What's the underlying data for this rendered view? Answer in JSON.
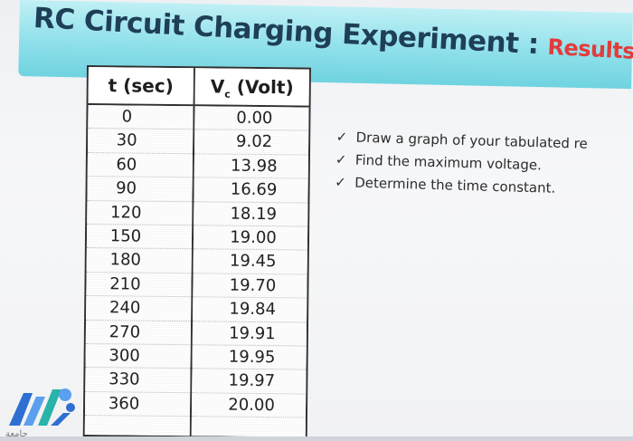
{
  "title": {
    "main": "RC Circuit Charging Experiment :",
    "results": "Results"
  },
  "table": {
    "headers": {
      "t": "t (sec)",
      "v_prefix": "V",
      "v_sub": "c",
      "v_suffix": " (Volt)"
    },
    "rows": [
      {
        "t": "0",
        "v": "0.00"
      },
      {
        "t": "30",
        "v": "9.02"
      },
      {
        "t": "60",
        "v": "13.98"
      },
      {
        "t": "90",
        "v": "16.69"
      },
      {
        "t": "120",
        "v": "18.19"
      },
      {
        "t": "150",
        "v": "19.00"
      },
      {
        "t": "180",
        "v": "19.45"
      },
      {
        "t": "210",
        "v": "19.70"
      },
      {
        "t": "240",
        "v": "19.84"
      },
      {
        "t": "270",
        "v": "19.91"
      },
      {
        "t": "300",
        "v": "19.95"
      },
      {
        "t": "330",
        "v": "19.97"
      },
      {
        "t": "360",
        "v": "20.00"
      }
    ]
  },
  "tasks": [
    {
      "check": "✓",
      "text": "Draw a graph of your tabulated re"
    },
    {
      "check": "✓",
      "text": "Find the maximum voltage."
    },
    {
      "check": "✓",
      "text": "Determine the time constant."
    }
  ],
  "logo": {
    "icon": "university-logo-icon",
    "colors": [
      "#2e6fd1",
      "#5aa0ee",
      "#2ab3a8"
    ]
  },
  "bottom_text": "جامعة"
}
